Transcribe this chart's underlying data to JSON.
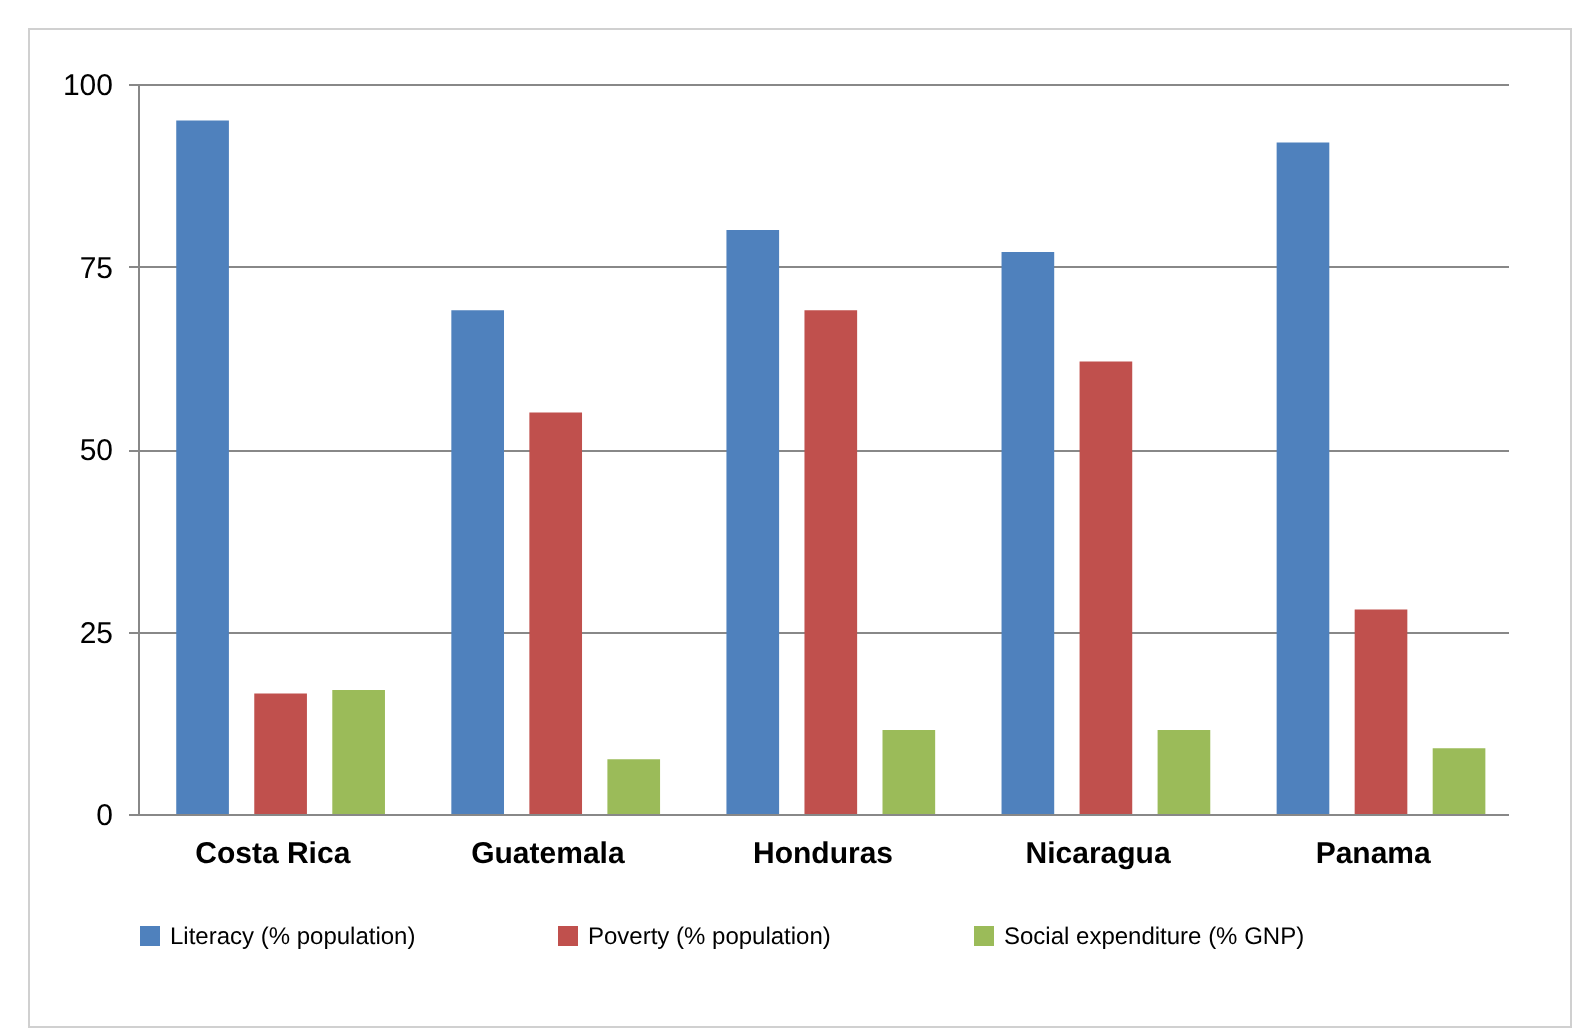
{
  "chart_data": {
    "type": "bar",
    "categories": [
      "Costa Rica",
      "Guatemala",
      "Honduras",
      "Nicaragua",
      "Panama"
    ],
    "series": [
      {
        "name": "Literacy (% population)",
        "color": "#4f81bd",
        "values": [
          95,
          69,
          80,
          77,
          92
        ]
      },
      {
        "name": "Poverty (% population)",
        "color": "#c0504d",
        "values": [
          16.5,
          55,
          69,
          62,
          28
        ]
      },
      {
        "name": "Social expenditure (% GNP)",
        "color": "#9bbb59",
        "values": [
          17,
          7.5,
          11.5,
          11.5,
          9
        ]
      }
    ],
    "ylim": [
      0,
      100
    ],
    "yticks": [
      0,
      25,
      50,
      75,
      100
    ],
    "grid": "y",
    "legend": "bottom"
  }
}
